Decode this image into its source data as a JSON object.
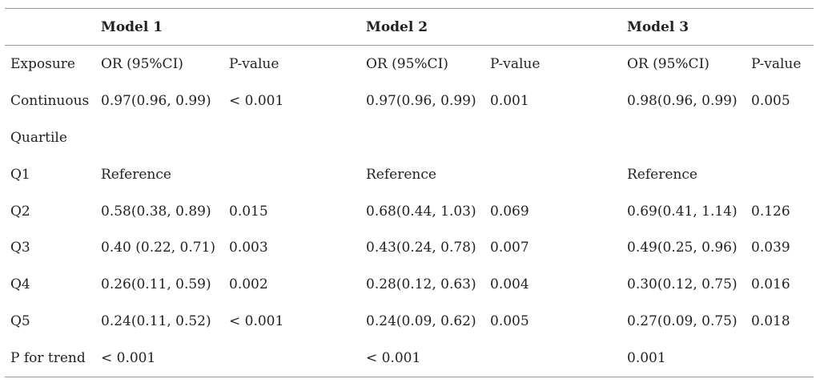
{
  "table": {
    "header": [
      "",
      "Model 1",
      "",
      "Model 2",
      "",
      "Model 3",
      ""
    ],
    "rows": [
      [
        "Exposure",
        "OR (95%CI)",
        "P-value",
        "OR (95%CI)",
        "P-value",
        "OR (95%CI)",
        "P-value"
      ],
      [
        "Continuous",
        "0.97(0.96, 0.99)",
        "< 0.001",
        "0.97(0.96, 0.99)",
        "0.001",
        "0.98(0.96, 0.99)",
        "0.005"
      ],
      [
        "Quartile",
        "",
        "",
        "",
        "",
        "",
        ""
      ],
      [
        "Q1",
        "Reference",
        "",
        "Reference",
        "",
        "Reference",
        ""
      ],
      [
        "Q2",
        "0.58(0.38, 0.89)",
        "0.015",
        "0.68(0.44, 1.03)",
        "0.069",
        "0.69(0.41, 1.14)",
        "0.126"
      ],
      [
        "Q3",
        "0.40 (0.22, 0.71)",
        "0.003",
        "0.43(0.24, 0.78)",
        "0.007",
        "0.49(0.25, 0.96)",
        "0.039"
      ],
      [
        "Q4",
        "0.26(0.11, 0.59)",
        "0.002",
        "0.28(0.12, 0.63)",
        "0.004",
        "0.30(0.12, 0.75)",
        "0.016"
      ],
      [
        "Q5",
        "0.24(0.11, 0.52)",
        "< 0.001",
        "0.24(0.09, 0.62)",
        "0.005",
        "0.27(0.09, 0.75)",
        "0.018"
      ],
      [
        "P for trend",
        "< 0.001",
        "",
        "< 0.001",
        "",
        "0.001",
        ""
      ]
    ]
  }
}
